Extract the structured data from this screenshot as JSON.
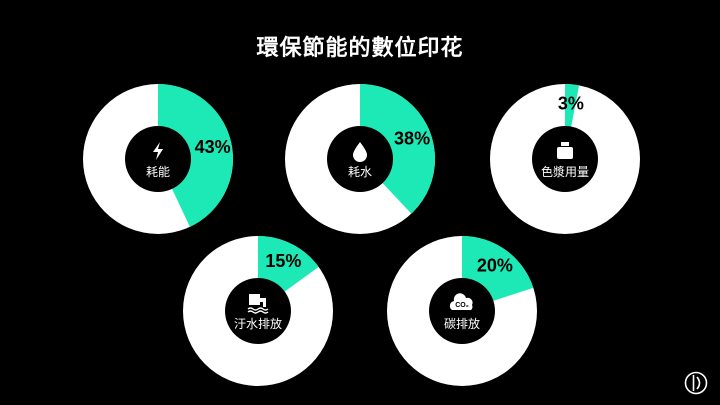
{
  "title": "環保節能的數位印花",
  "colors": {
    "background": "#000000",
    "ring": "#ffffff",
    "accent": "#1de9b6",
    "hub": "#000000"
  },
  "chart_data": [
    {
      "type": "pie",
      "label": "耗能",
      "percent": 43,
      "icon": "lightning-icon"
    },
    {
      "type": "pie",
      "label": "耗水",
      "percent": 38,
      "icon": "water-drop-icon"
    },
    {
      "type": "pie",
      "label": "色漿用量",
      "percent": 3,
      "icon": "ink-jar-icon"
    },
    {
      "type": "pie",
      "label": "汙水排放",
      "percent": 15,
      "icon": "wastewater-icon"
    },
    {
      "type": "pie",
      "label": "碳排放",
      "percent": 20,
      "icon": "co2-cloud-icon"
    }
  ]
}
